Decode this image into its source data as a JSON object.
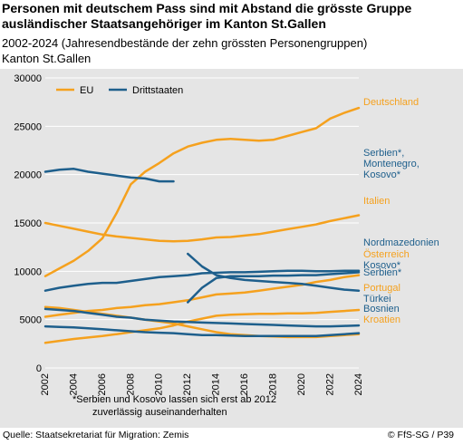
{
  "title": "Personen mit deutschem Pass sind mit Abstand die grösste Gruppe ausländischer Staatsangehöriger im Kanton St.Gallen",
  "subtitle": "2002-2024 (Jahresendbestände der zehn grössten Personengruppen)",
  "region": "Kanton St.Gallen",
  "footnote": {
    "line1": "*Serbien und Kosovo lassen sich erst ab 2012",
    "line2": "zuverlässig auseinanderhalten"
  },
  "source": "Quelle: Staatsekretariat für Migration: Zemis",
  "credit": "© FfS-SG / P39",
  "colors": {
    "eu": "#f5a11e",
    "drittstaaten": "#1e5f8c",
    "panel": "#e5e5e5",
    "grid": "#ffffff"
  },
  "chart_data": {
    "type": "line",
    "ylim": [
      0,
      30000
    ],
    "yticks": [
      0,
      5000,
      10000,
      15000,
      20000,
      25000,
      30000
    ],
    "xlim": [
      2002,
      2024
    ],
    "xticks": [
      2002,
      2004,
      2006,
      2008,
      2010,
      2012,
      2014,
      2016,
      2018,
      2020,
      2022,
      2024
    ],
    "legend": [
      {
        "label": "EU",
        "group": "eu"
      },
      {
        "label": "Drittstaaten",
        "group": "drittstaaten"
      }
    ],
    "legend_position": "top-left",
    "series": [
      {
        "name": "Deutschland",
        "group": "eu",
        "x": [
          2002,
          2003,
          2004,
          2005,
          2006,
          2007,
          2008,
          2009,
          2010,
          2011,
          2012,
          2013,
          2014,
          2015,
          2016,
          2017,
          2018,
          2019,
          2020,
          2021,
          2022,
          2023,
          2024
        ],
        "values": [
          9500,
          10300,
          11100,
          12100,
          13400,
          16000,
          19000,
          20300,
          21200,
          22200,
          22900,
          23300,
          23600,
          23700,
          23600,
          23500,
          23600,
          24000,
          24400,
          24800,
          25800,
          26400,
          26900
        ]
      },
      {
        "name": "Italien",
        "group": "eu",
        "x": [
          2002,
          2003,
          2004,
          2005,
          2006,
          2007,
          2008,
          2009,
          2010,
          2011,
          2012,
          2013,
          2014,
          2015,
          2016,
          2017,
          2018,
          2019,
          2020,
          2021,
          2022,
          2023,
          2024
        ],
        "values": [
          15000,
          14700,
          14400,
          14100,
          13800,
          13600,
          13450,
          13300,
          13150,
          13100,
          13150,
          13300,
          13500,
          13550,
          13700,
          13850,
          14100,
          14350,
          14600,
          14850,
          15200,
          15500,
          15800
        ]
      },
      {
        "name": "Österreich",
        "group": "eu",
        "x": [
          2002,
          2003,
          2004,
          2005,
          2006,
          2007,
          2008,
          2009,
          2010,
          2011,
          2012,
          2013,
          2014,
          2015,
          2016,
          2017,
          2018,
          2019,
          2020,
          2021,
          2022,
          2023,
          2024
        ],
        "values": [
          5300,
          5500,
          5700,
          5900,
          6000,
          6200,
          6300,
          6500,
          6600,
          6800,
          7000,
          7300,
          7600,
          7700,
          7800,
          8000,
          8200,
          8400,
          8600,
          8900,
          9100,
          9400,
          9600
        ]
      },
      {
        "name": "Portugal",
        "group": "eu",
        "x": [
          2002,
          2003,
          2004,
          2005,
          2006,
          2007,
          2008,
          2009,
          2010,
          2011,
          2012,
          2013,
          2014,
          2015,
          2016,
          2017,
          2018,
          2019,
          2020,
          2021,
          2022,
          2023,
          2024
        ],
        "values": [
          2600,
          2800,
          3000,
          3150,
          3300,
          3500,
          3700,
          3900,
          4100,
          4400,
          4800,
          5100,
          5400,
          5500,
          5550,
          5600,
          5600,
          5650,
          5650,
          5700,
          5800,
          5900,
          6000
        ]
      },
      {
        "name": "Kroatien",
        "group": "eu",
        "x": [
          2002,
          2003,
          2004,
          2005,
          2006,
          2007,
          2008,
          2009,
          2010,
          2011,
          2012,
          2013,
          2014,
          2015,
          2016,
          2017,
          2018,
          2019,
          2020,
          2021,
          2022,
          2023,
          2024
        ],
        "values": [
          6300,
          6200,
          6000,
          5800,
          5600,
          5400,
          5200,
          5000,
          4800,
          4600,
          4300,
          4000,
          3700,
          3500,
          3400,
          3300,
          3250,
          3200,
          3200,
          3200,
          3300,
          3400,
          3500
        ]
      },
      {
        "name": "Serbien*, Montenegro, Kosovo*",
        "group": "drittstaaten",
        "x": [
          2002,
          2003,
          2004,
          2005,
          2006,
          2007,
          2008,
          2009,
          2010,
          2011
        ],
        "values": [
          20300,
          20500,
          20600,
          20300,
          20100,
          19900,
          19700,
          19600,
          19300,
          19300
        ]
      },
      {
        "name": "Nordmazedonien",
        "group": "drittstaaten",
        "x": [
          2002,
          2003,
          2004,
          2005,
          2006,
          2007,
          2008,
          2009,
          2010,
          2011,
          2012,
          2013,
          2014,
          2015,
          2016,
          2017,
          2018,
          2019,
          2020,
          2021,
          2022,
          2023,
          2024
        ],
        "values": [
          8000,
          8300,
          8500,
          8700,
          8800,
          8800,
          9000,
          9200,
          9400,
          9500,
          9600,
          9800,
          9850,
          9900,
          9900,
          9950,
          10000,
          10050,
          10050,
          10000,
          10000,
          10050,
          10050
        ]
      },
      {
        "name": "Kosovo*",
        "group": "drittstaaten",
        "x": [
          2012,
          2013,
          2014,
          2015,
          2016,
          2017,
          2018,
          2019,
          2020,
          2021,
          2022,
          2023,
          2024
        ],
        "values": [
          6800,
          8300,
          9300,
          9500,
          9500,
          9500,
          9550,
          9550,
          9600,
          9600,
          9700,
          9800,
          9900
        ]
      },
      {
        "name": "Serbien*",
        "group": "drittstaaten",
        "x": [
          2012,
          2013,
          2014,
          2015,
          2016,
          2017,
          2018,
          2019,
          2020,
          2021,
          2022,
          2023,
          2024
        ],
        "values": [
          11800,
          10500,
          9600,
          9300,
          9100,
          9000,
          8900,
          8800,
          8700,
          8500,
          8300,
          8100,
          8000
        ]
      },
      {
        "name": "Türkei",
        "group": "drittstaaten",
        "x": [
          2002,
          2003,
          2004,
          2005,
          2006,
          2007,
          2008,
          2009,
          2010,
          2011,
          2012,
          2013,
          2014,
          2015,
          2016,
          2017,
          2018,
          2019,
          2020,
          2021,
          2022,
          2023,
          2024
        ],
        "values": [
          6100,
          6000,
          5900,
          5700,
          5500,
          5300,
          5200,
          5000,
          4900,
          4800,
          4750,
          4700,
          4650,
          4600,
          4550,
          4500,
          4450,
          4400,
          4350,
          4300,
          4300,
          4350,
          4400
        ]
      },
      {
        "name": "Bosnien",
        "group": "drittstaaten",
        "x": [
          2002,
          2003,
          2004,
          2005,
          2006,
          2007,
          2008,
          2009,
          2010,
          2011,
          2012,
          2013,
          2014,
          2015,
          2016,
          2017,
          2018,
          2019,
          2020,
          2021,
          2022,
          2023,
          2024
        ],
        "values": [
          4300,
          4250,
          4200,
          4100,
          4000,
          3900,
          3800,
          3700,
          3650,
          3600,
          3500,
          3400,
          3400,
          3350,
          3300,
          3300,
          3300,
          3300,
          3300,
          3300,
          3400,
          3500,
          3600
        ]
      }
    ],
    "end_labels": [
      {
        "lines": [
          "Deutschland"
        ],
        "group": "eu"
      },
      {
        "lines": [
          "Serbien*,",
          "Montenegro,",
          "Kosovo*"
        ],
        "group": "drittstaaten"
      },
      {
        "lines": [
          "Italien"
        ],
        "group": "eu"
      },
      {
        "lines": [
          "Nordmazedonien"
        ],
        "group": "drittstaaten"
      },
      {
        "lines": [
          "Österreich"
        ],
        "group": "eu"
      },
      {
        "lines": [
          "Kosovo*"
        ],
        "group": "drittstaaten"
      },
      {
        "lines": [
          "Serbien*"
        ],
        "group": "drittstaaten"
      },
      {
        "lines": [
          "Portugal"
        ],
        "group": "eu"
      },
      {
        "lines": [
          "Türkei"
        ],
        "group": "drittstaaten"
      },
      {
        "lines": [
          "Bosnien"
        ],
        "group": "drittstaaten"
      },
      {
        "lines": [
          "Kroatien"
        ],
        "group": "eu"
      }
    ]
  }
}
